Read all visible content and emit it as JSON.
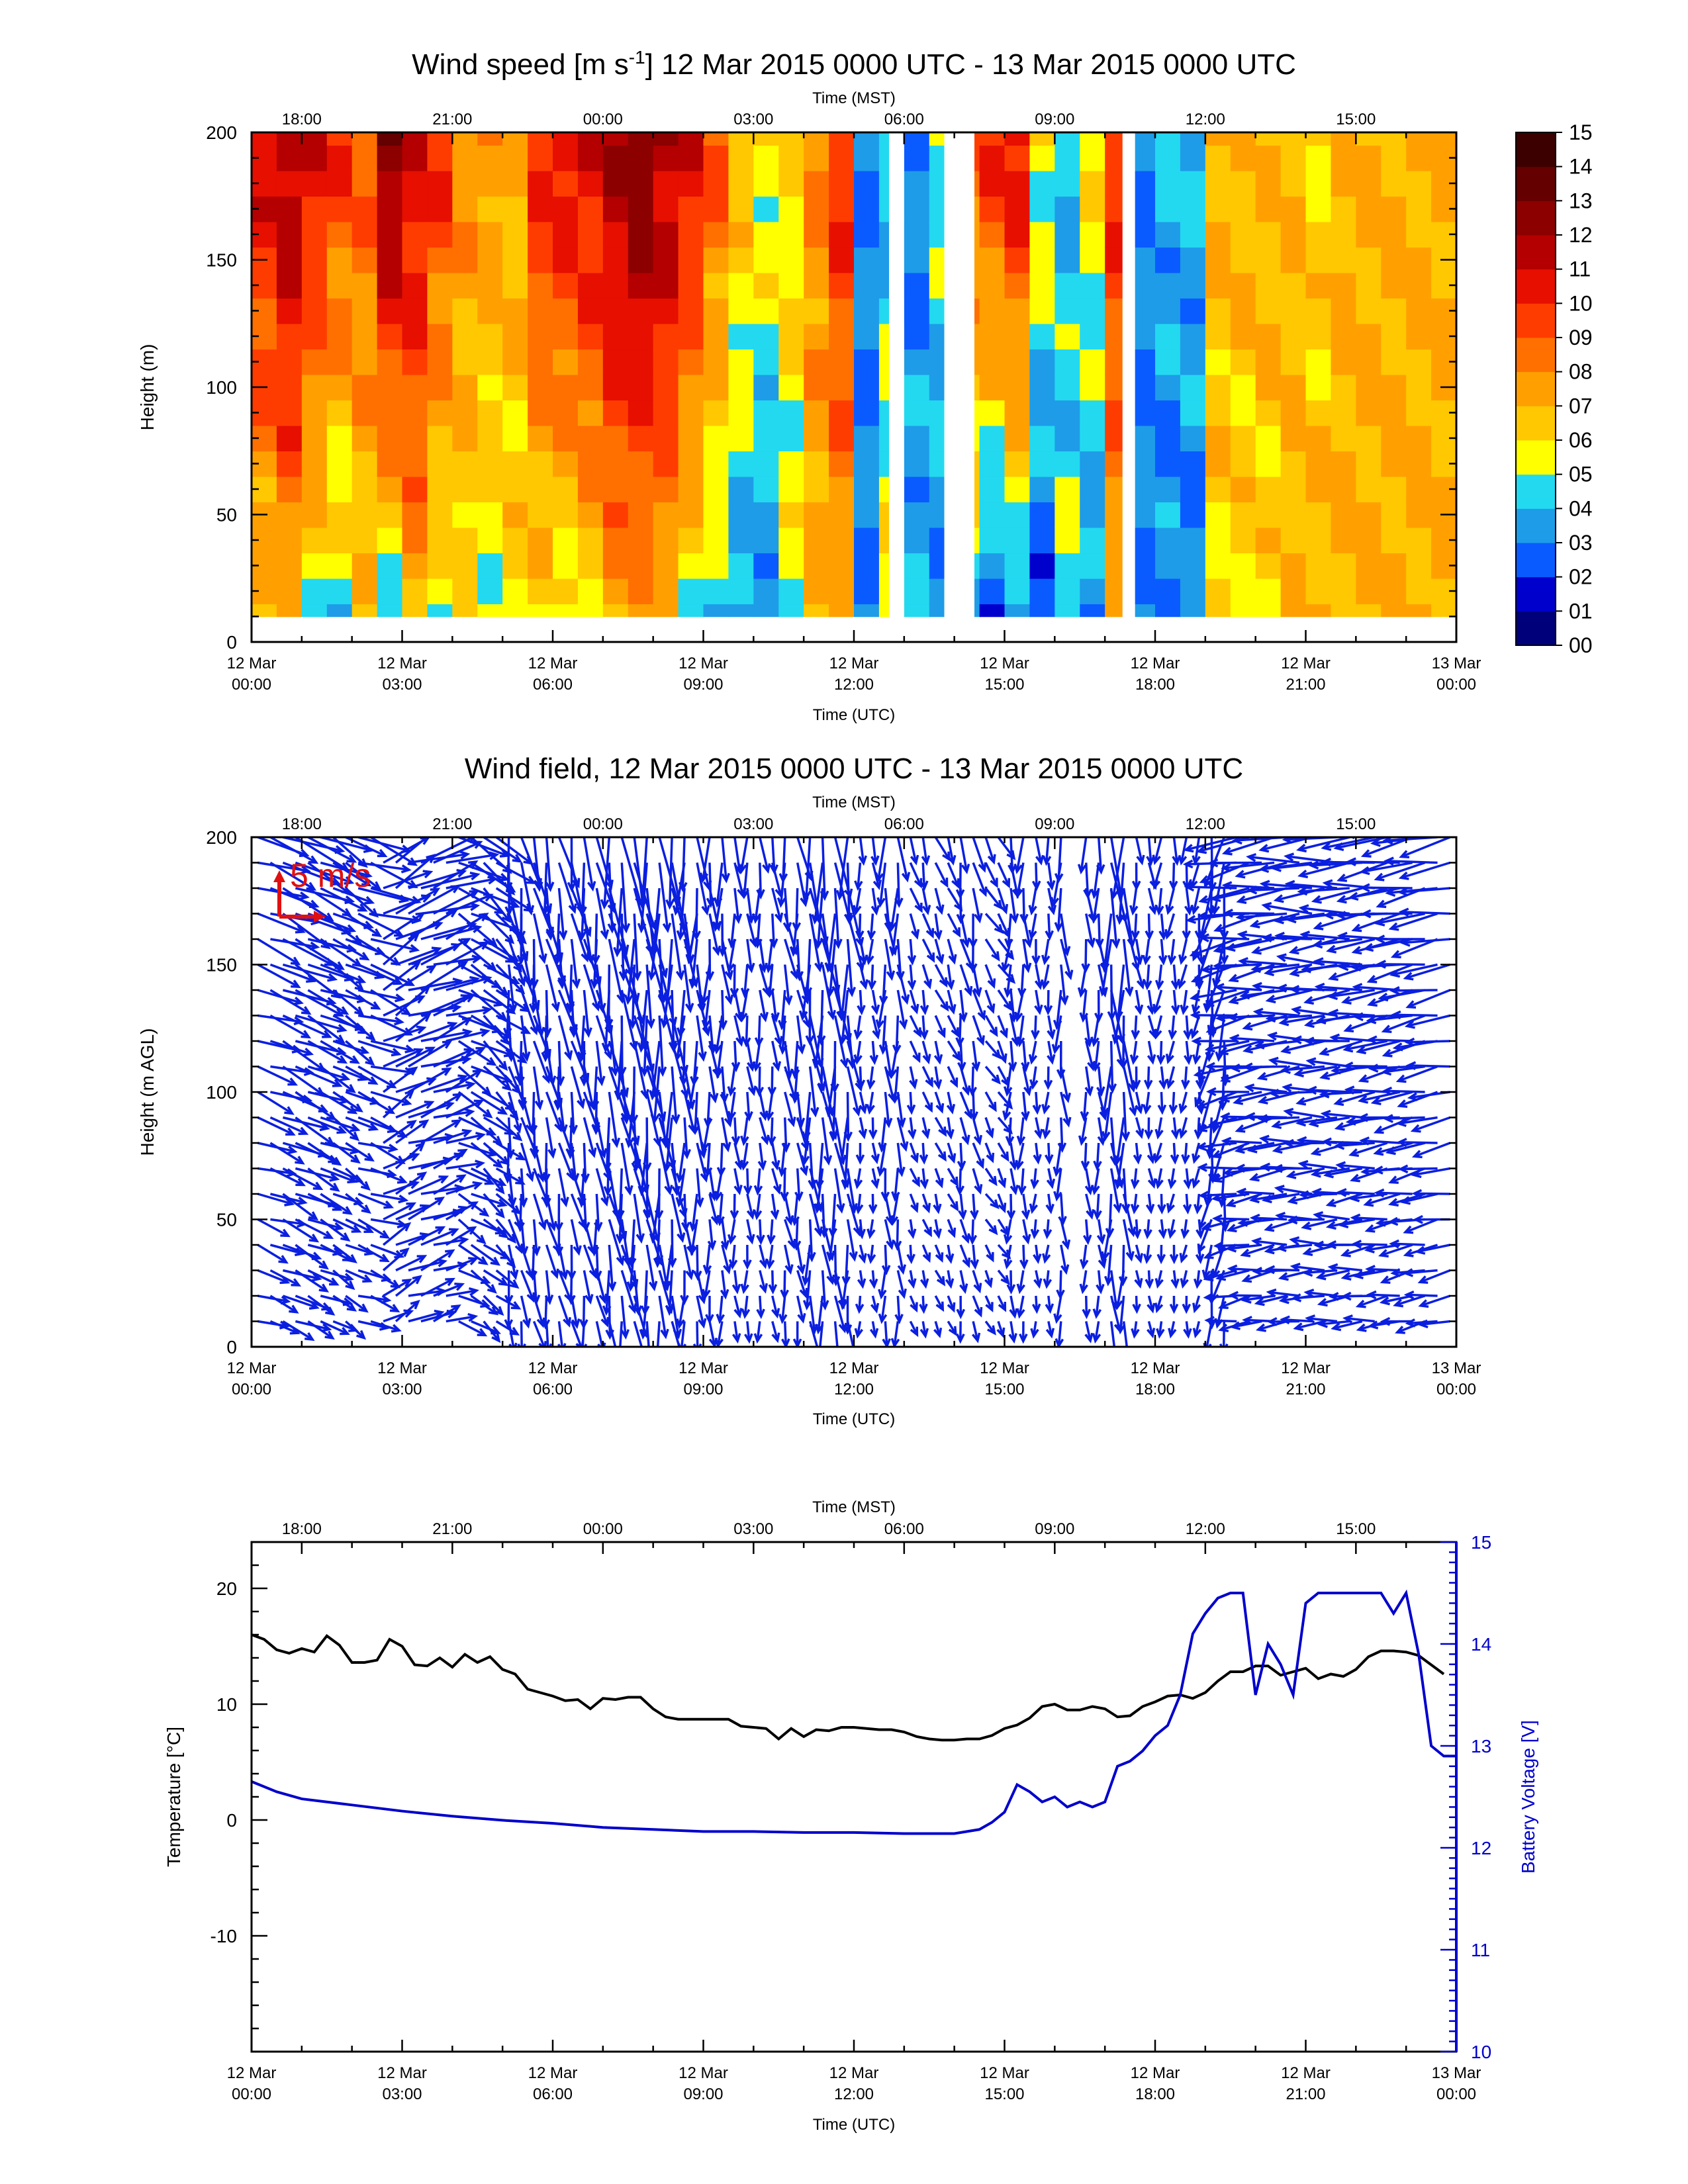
{
  "chart_data": [
    {
      "type": "heatmap",
      "title_main": "Wind speed [m s",
      "title_sup": "-1",
      "title_rest": "] 12 Mar 2015 0000 UTC - 13 Mar 2015 0000 UTC",
      "xlabel": "Time (UTC)",
      "top_xlabel": "Time (MST)",
      "ylabel": "Height (m)",
      "xlim_hours": [
        0,
        24
      ],
      "ylim": [
        0,
        200
      ],
      "y_ticks": [
        "0",
        "50",
        "100",
        "150",
        "200"
      ],
      "colorbar": {
        "labels": [
          "00",
          "01",
          "02",
          "03",
          "04",
          "05",
          "06",
          "07",
          "08",
          "09",
          "10",
          "11",
          "12",
          "13",
          "14",
          "15"
        ],
        "colors": [
          "#00007a",
          "#0000cd",
          "#0a5bff",
          "#1e9ce8",
          "#23d9f0",
          "#ffff00",
          "#ffc800",
          "#ffa000",
          "#ff7000",
          "#ff3c00",
          "#e60f00",
          "#b40000",
          "#8c0000",
          "#640000",
          "#3c0000"
        ]
      },
      "height_levels_m": [
        10,
        20,
        30,
        40,
        50,
        60,
        70,
        80,
        90,
        100,
        110,
        120,
        130,
        140,
        150,
        160,
        170,
        180,
        190,
        200
      ],
      "time_hours": [
        0.0,
        0.5,
        1.0,
        1.5,
        2.0,
        2.5,
        3.0,
        3.5,
        4.0,
        4.5,
        5.0,
        5.5,
        6.0,
        6.5,
        7.0,
        7.5,
        8.0,
        8.5,
        9.0,
        9.5,
        10.0,
        10.5,
        11.0,
        11.5,
        12.0,
        12.5,
        13.0,
        13.5,
        14.0,
        14.5,
        15.0,
        15.5,
        16.0,
        16.5,
        17.0,
        17.5,
        18.0,
        18.5,
        19.0,
        19.5,
        20.0,
        20.5,
        21.0,
        21.5,
        22.0,
        22.5,
        23.0,
        23.5
      ],
      "speed_low_m_s": [
        6,
        7,
        5,
        4,
        6,
        4,
        7,
        5,
        6,
        5,
        6,
        6,
        5,
        6,
        7,
        7,
        7,
        5,
        4,
        3,
        3,
        5,
        7,
        7,
        3,
        6,
        4,
        3,
        4,
        2,
        3,
        2,
        5,
        3,
        7,
        3,
        3,
        3,
        6,
        6,
        6,
        7,
        7,
        7,
        7,
        7,
        7,
        7
      ],
      "speed_high_m_s": [
        11,
        12,
        11,
        10,
        9,
        13,
        11,
        10,
        8,
        8,
        7,
        10,
        11,
        11,
        12,
        13,
        12,
        11,
        9,
        7,
        6,
        6,
        8,
        10,
        3,
        4,
        3,
        5,
        9,
        10,
        11,
        6,
        4,
        6,
        10,
        3,
        4,
        4,
        7,
        7,
        7,
        7,
        6,
        7,
        7,
        7,
        7,
        7
      ],
      "missing_periods_hours": [
        [
          12.7,
          13.0
        ],
        [
          13.8,
          14.4
        ],
        [
          17.35,
          17.6
        ]
      ]
    },
    {
      "type": "vector",
      "title": "Wind field, 12 Mar 2015 0000 UTC - 13 Mar 2015 0000 UTC",
      "xlabel": "Time (UTC)",
      "top_xlabel": "Time (MST)",
      "ylabel": "Height (m AGL)",
      "xlim_hours": [
        0,
        24
      ],
      "ylim": [
        0,
        200
      ],
      "y_ticks": [
        "0",
        "50",
        "100",
        "150",
        "200"
      ],
      "reference_vector_label": "5 m/s",
      "reference_speed_m_s": 5,
      "flow_direction_deg_from_east": [
        -20,
        -25,
        -25,
        -30,
        -20,
        30,
        20,
        20,
        -30,
        -40,
        -80,
        -80,
        -80,
        -82,
        -82,
        -84,
        -86,
        -88,
        -88,
        -88,
        -86,
        -84,
        -86,
        -86,
        -88,
        -88,
        -75,
        -70,
        -80,
        -60,
        -90,
        -90,
        -88,
        -88,
        -88,
        -86,
        -95,
        -95,
        -100,
        -170,
        -172,
        -175,
        -178,
        -176,
        -174,
        -172,
        -170,
        -170
      ],
      "vector_speed_m_s": [
        6,
        7,
        6,
        5,
        6,
        6,
        7,
        6,
        6,
        5,
        6,
        6,
        6,
        6,
        8,
        8,
        8,
        6,
        5,
        4,
        4,
        5,
        7,
        7,
        3,
        5,
        3,
        3,
        4,
        3,
        4,
        3,
        5,
        4,
        7,
        3,
        3,
        3,
        6,
        6,
        6,
        6,
        6,
        6,
        6,
        6,
        6,
        6
      ],
      "missing_periods_hours": [
        [
          16.3,
          16.6
        ]
      ]
    },
    {
      "type": "line",
      "xlabel": "Time (UTC)",
      "top_xlabel": "Time (MST)",
      "ylabel": "Temperature [°C]",
      "y2label": "Battery Voltage [V]",
      "xlim_hours": [
        0,
        24
      ],
      "ylim": [
        -20,
        24
      ],
      "y2lim": [
        10,
        15
      ],
      "y_ticks": [
        "-10",
        "0",
        "10",
        "20"
      ],
      "y2_ticks": [
        "10",
        "11",
        "12",
        "13",
        "14",
        "15"
      ],
      "series": [
        {
          "name": "Temperature [°C]",
          "color": "#000000",
          "x": [
            0.0,
            0.25,
            0.5,
            0.75,
            1.0,
            1.25,
            1.5,
            1.75,
            2.0,
            2.25,
            2.5,
            2.75,
            3.0,
            3.25,
            3.5,
            3.75,
            4.0,
            4.25,
            4.5,
            4.75,
            5.0,
            5.25,
            5.5,
            5.75,
            6.0,
            6.25,
            6.5,
            6.75,
            7.0,
            7.25,
            7.5,
            7.75,
            8.0,
            8.25,
            8.5,
            8.75,
            9.0,
            9.25,
            9.5,
            9.75,
            10.0,
            10.25,
            10.5,
            10.75,
            11.0,
            11.25,
            11.5,
            11.75,
            12.0,
            12.25,
            12.5,
            12.75,
            13.0,
            13.25,
            13.5,
            13.75,
            14.0,
            14.25,
            14.5,
            14.75,
            15.0,
            15.25,
            15.5,
            15.75,
            16.0,
            16.25,
            16.5,
            16.75,
            17.0,
            17.25,
            17.5,
            17.75,
            18.0,
            18.25,
            18.5,
            18.75,
            19.0,
            19.25,
            19.5,
            19.75,
            20.0,
            20.25,
            20.5,
            20.75,
            21.0,
            21.25,
            21.5,
            21.75,
            22.0,
            22.25,
            22.5,
            22.75,
            23.0,
            23.25,
            23.5,
            23.75
          ],
          "y": [
            16.0,
            15.6,
            14.7,
            14.4,
            14.8,
            14.5,
            15.9,
            15.1,
            13.6,
            13.6,
            13.8,
            15.6,
            15.0,
            13.4,
            13.3,
            14.0,
            13.2,
            14.3,
            13.6,
            14.1,
            13.0,
            12.6,
            11.3,
            11.0,
            10.7,
            10.3,
            10.4,
            9.6,
            10.5,
            10.4,
            10.6,
            10.6,
            9.6,
            8.9,
            8.7,
            8.7,
            8.7,
            8.7,
            8.7,
            8.1,
            8.0,
            7.9,
            7.0,
            7.9,
            7.2,
            7.8,
            7.7,
            8.0,
            8.0,
            7.9,
            7.8,
            7.8,
            7.6,
            7.2,
            7.0,
            6.9,
            6.9,
            7.0,
            7.0,
            7.3,
            7.9,
            8.2,
            8.8,
            9.8,
            10.0,
            9.5,
            9.5,
            9.8,
            9.6,
            8.9,
            9.0,
            9.8,
            10.2,
            10.7,
            10.8,
            10.5,
            11.0,
            12.0,
            12.8,
            12.8,
            13.3,
            13.3,
            12.5,
            12.8,
            13.1,
            12.2,
            12.6,
            12.4,
            13.0,
            14.1,
            14.6,
            14.6,
            14.5,
            14.2,
            13.4,
            12.6
          ]
        },
        {
          "name": "Battery Voltage [V]",
          "color": "#0000cc",
          "x": [
            0.0,
            0.5,
            1.0,
            2.0,
            3.0,
            4.0,
            5.0,
            6.0,
            7.0,
            8.0,
            9.0,
            10.0,
            11.0,
            12.0,
            13.0,
            13.5,
            14.0,
            14.5,
            14.75,
            15.0,
            15.25,
            15.5,
            15.75,
            16.0,
            16.25,
            16.5,
            16.75,
            17.0,
            17.25,
            17.5,
            17.75,
            18.0,
            18.25,
            18.5,
            18.75,
            19.0,
            19.25,
            19.5,
            19.75,
            20.0,
            20.25,
            20.5,
            20.75,
            21.0,
            21.25,
            21.5,
            21.75,
            22.0,
            22.25,
            22.5,
            22.75,
            23.0,
            23.25,
            23.5,
            23.75,
            24.0
          ],
          "y": [
            12.65,
            12.55,
            12.48,
            12.42,
            12.36,
            12.31,
            12.27,
            12.24,
            12.2,
            12.18,
            12.16,
            12.16,
            12.15,
            12.15,
            12.14,
            12.14,
            12.14,
            12.18,
            12.25,
            12.35,
            12.62,
            12.55,
            12.45,
            12.5,
            12.4,
            12.45,
            12.4,
            12.45,
            12.8,
            12.85,
            12.95,
            13.1,
            13.2,
            13.5,
            14.1,
            14.3,
            14.45,
            14.5,
            14.5,
            13.5,
            14.0,
            13.8,
            13.5,
            14.4,
            14.5,
            14.5,
            14.5,
            14.5,
            14.5,
            14.5,
            14.3,
            14.5,
            13.9,
            13.0,
            12.9,
            12.9
          ]
        }
      ]
    }
  ],
  "x_ticks_utc": [
    {
      "day": "12 Mar",
      "time": "00:00"
    },
    {
      "day": "12 Mar",
      "time": "03:00"
    },
    {
      "day": "12 Mar",
      "time": "06:00"
    },
    {
      "day": "12 Mar",
      "time": "09:00"
    },
    {
      "day": "12 Mar",
      "time": "12:00"
    },
    {
      "day": "12 Mar",
      "time": "15:00"
    },
    {
      "day": "12 Mar",
      "time": "18:00"
    },
    {
      "day": "12 Mar",
      "time": "21:00"
    },
    {
      "day": "13 Mar",
      "time": "00:00"
    }
  ],
  "x_ticks_mst": [
    "18:00",
    "21:00",
    "00:00",
    "03:00",
    "06:00",
    "09:00",
    "12:00",
    "15:00"
  ]
}
